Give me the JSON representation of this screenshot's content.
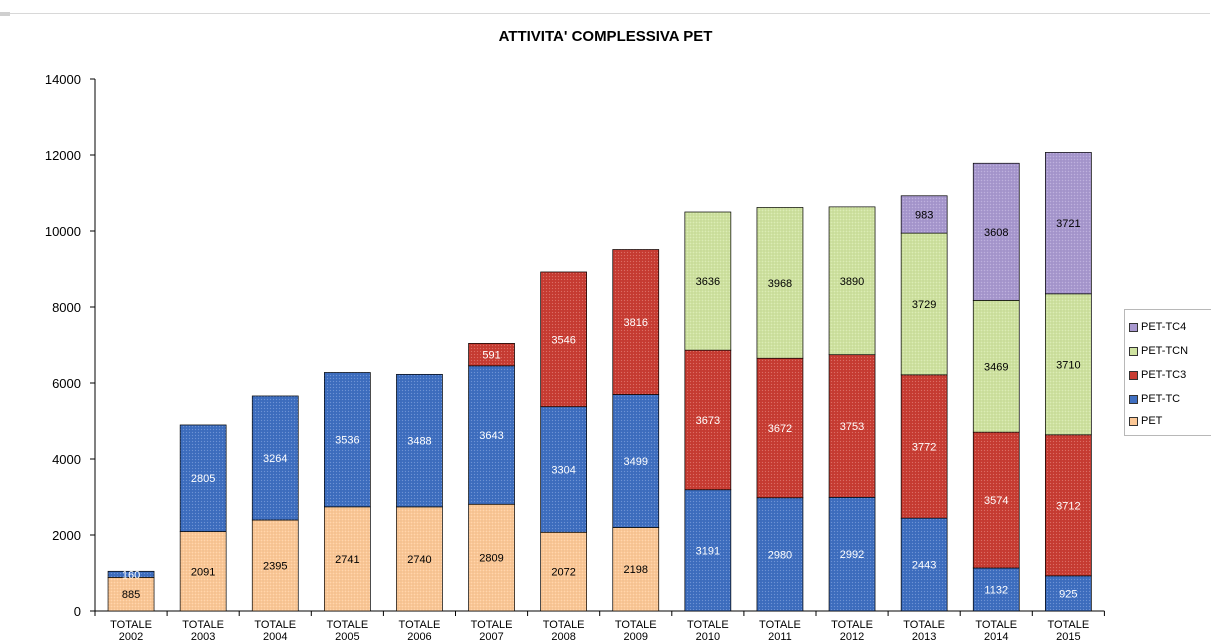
{
  "chart_data": {
    "type": "bar",
    "stacked": true,
    "title": "ATTIVITA' COMPLESSIVA PET",
    "xlabel": "",
    "ylabel": "",
    "ylim": [
      0,
      14000
    ],
    "yticks": [
      0,
      2000,
      4000,
      6000,
      8000,
      10000,
      12000,
      14000
    ],
    "grid": false,
    "legend_position": "right",
    "categories": [
      [
        "TOTALE",
        "2002"
      ],
      [
        "TOTALE",
        "2003"
      ],
      [
        "TOTALE",
        "2004"
      ],
      [
        "TOTALE",
        "2005"
      ],
      [
        "TOTALE",
        "2006"
      ],
      [
        "TOTALE",
        "2007"
      ],
      [
        "TOTALE",
        "2008"
      ],
      [
        "TOTALE",
        "2009"
      ],
      [
        "TOTALE",
        "2010"
      ],
      [
        "TOTALE",
        "2011"
      ],
      [
        "TOTALE",
        "2012"
      ],
      [
        "TOTALE",
        "2013"
      ],
      [
        "TOTALE",
        "2014"
      ],
      [
        "TOTALE",
        "2015"
      ]
    ],
    "series": [
      {
        "name": "PET",
        "color": "#fcc896",
        "label_color": "#000000",
        "values": [
          885,
          2091,
          2395,
          2741,
          2740,
          2809,
          2072,
          2198,
          0,
          0,
          0,
          0,
          0,
          0
        ]
      },
      {
        "name": "PET-TC",
        "color": "#3f6fc1",
        "label_color": "#ffffff",
        "values": [
          160,
          2805,
          3264,
          3536,
          3488,
          3643,
          3304,
          3499,
          3191,
          2980,
          2992,
          2443,
          1132,
          925
        ]
      },
      {
        "name": "PET-TC3",
        "color": "#c93d33",
        "label_color": "#ffffff",
        "values": [
          0,
          0,
          0,
          0,
          0,
          591,
          3546,
          3816,
          3673,
          3672,
          3753,
          3772,
          3574,
          3712
        ]
      },
      {
        "name": "PET-TCN",
        "color": "#cfe3a0",
        "label_color": "#000000",
        "values": [
          0,
          0,
          0,
          0,
          0,
          0,
          0,
          0,
          3636,
          3968,
          3890,
          3729,
          3469,
          3710
        ]
      },
      {
        "name": "PET-TC4",
        "color": "#a898cf",
        "label_color": "#000000",
        "values": [
          0,
          0,
          0,
          0,
          0,
          0,
          0,
          0,
          0,
          0,
          0,
          983,
          3608,
          3721
        ]
      }
    ],
    "legend_order": [
      "PET-TC4",
      "PET-TCN",
      "PET-TC3",
      "PET-TC",
      "PET"
    ]
  }
}
